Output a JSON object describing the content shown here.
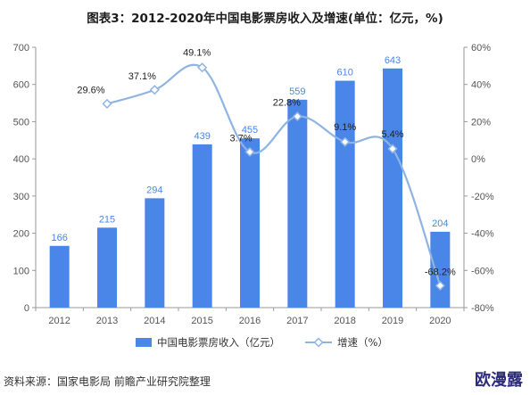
{
  "title": "图表3：2012-2020年中国电影票房收入及增速(单位：亿元，%)",
  "source": "资料来源：国家电影局 前瞻产业研究院整理",
  "logo_text": "欧漫露",
  "colors": {
    "bar": "#4a86e8",
    "line": "#8fb4e3",
    "marker": "#ffffff",
    "marker_stroke": "#8fb4e3",
    "axis": "#999999"
  },
  "chart_data": {
    "type": "bar",
    "categories": [
      "2012",
      "2013",
      "2014",
      "2015",
      "2016",
      "2017",
      "2018",
      "2019",
      "2020"
    ],
    "series": [
      {
        "name": "中国电影票房收入（亿元）",
        "type": "bar",
        "axis": "left",
        "values": [
          166,
          215,
          294,
          439,
          455,
          559,
          610,
          643,
          204
        ],
        "labels": [
          "166",
          "215",
          "294",
          "439",
          "455",
          "559",
          "610",
          "643",
          "204"
        ]
      },
      {
        "name": "增速（%）",
        "type": "line",
        "axis": "right",
        "values": [
          null,
          29.6,
          37.1,
          49.1,
          3.7,
          22.8,
          9.1,
          5.4,
          -68.2
        ],
        "labels": [
          "",
          "29.6%",
          "37.1%",
          "49.1%",
          "3.7%",
          "22.8%",
          "9.1%",
          "5.4%",
          "-68.2%"
        ]
      }
    ],
    "y_left": {
      "min": 0,
      "max": 700,
      "step": 100,
      "ticks": [
        "0",
        "100",
        "200",
        "300",
        "400",
        "500",
        "600",
        "700"
      ]
    },
    "y_right": {
      "min": -80,
      "max": 60,
      "step": 20,
      "ticks": [
        "-80%",
        "-60%",
        "-40%",
        "-20%",
        "0%",
        "20%",
        "40%",
        "60%"
      ]
    },
    "legend_position": "bottom",
    "grid": false
  }
}
